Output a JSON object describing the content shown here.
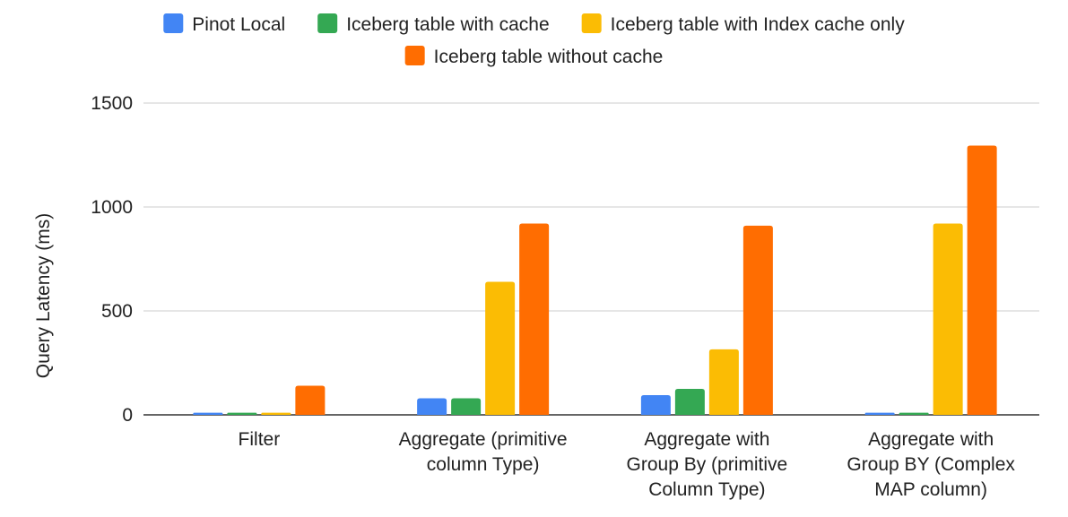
{
  "chart_data": {
    "type": "bar",
    "title": "",
    "xlabel": "",
    "ylabel": "Query Latency (ms)",
    "ylim": [
      0,
      1500
    ],
    "yticks": [
      0,
      500,
      1000,
      1500
    ],
    "grid": true,
    "legend_position": "top",
    "categories": [
      [
        "Filter"
      ],
      [
        "Aggregate (primitive",
        "column Type)"
      ],
      [
        "Aggregate with",
        "Group By (primitive",
        "Column Type)"
      ],
      [
        "Aggregate with",
        "Group BY (Complex",
        "MAP column)"
      ]
    ],
    "series": [
      {
        "name": "Pinot Local",
        "color": "#4285f4",
        "values": [
          10,
          80,
          95,
          10
        ]
      },
      {
        "name": "Iceberg table with cache",
        "color": "#34a853",
        "values": [
          10,
          80,
          125,
          10
        ]
      },
      {
        "name": "Iceberg table with Index cache only",
        "color": "#fbbc04",
        "values": [
          10,
          640,
          315,
          920
        ]
      },
      {
        "name": "Iceberg table without cache",
        "color": "#ff6d01",
        "values": [
          140,
          920,
          910,
          1295
        ]
      }
    ]
  }
}
